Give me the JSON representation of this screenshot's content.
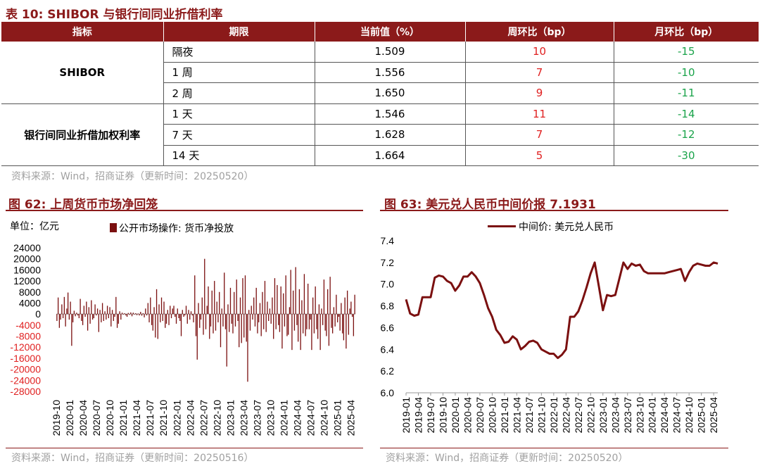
{
  "table": {
    "title": "表 10:  SHIBOR 与银行间同业折借利率",
    "headers": [
      "指标",
      "期限",
      "当前值（%）",
      "周环比（bp）",
      "月环比（bp）"
    ],
    "groups": [
      {
        "name": "SHIBOR",
        "rows": [
          {
            "period": "隔夜",
            "value": "1.509",
            "wow": "10",
            "mom": "-15"
          },
          {
            "period": "1 周",
            "value": "1.556",
            "wow": "7",
            "mom": "-10"
          },
          {
            "period": "2 周",
            "value": "1.650",
            "wow": "9",
            "mom": "-11"
          }
        ]
      },
      {
        "name": "银行间同业折借加权利率",
        "rows": [
          {
            "period": "1 天",
            "value": "1.546",
            "wow": "11",
            "mom": "-14"
          },
          {
            "period": "7 天",
            "value": "1.628",
            "wow": "7",
            "mom": "-12"
          },
          {
            "period": "14 天",
            "value": "1.664",
            "wow": "5",
            "mom": "-30"
          }
        ]
      }
    ],
    "source": "资料来源：Wind，招商证券（更新时间：20250520）"
  },
  "colors": {
    "accent": "#8B1A1A",
    "positive": "#e02020",
    "negative": "#1aa34a",
    "series": "#7B1010"
  },
  "chart_data": [
    {
      "type": "bar",
      "title": "图 62:  上周货币市场净回笼",
      "unit_label": "单位：亿元",
      "legend": "公开市场操作: 货币净投放",
      "legend_position": "top",
      "ylim": [
        -28000,
        24000
      ],
      "yticks": [
        24000,
        20000,
        16000,
        12000,
        8000,
        4000,
        0,
        -4000,
        -8000,
        -12000,
        -16000,
        -20000,
        -24000,
        -28000
      ],
      "ytick_labels": [
        "24000",
        "20000",
        "16000",
        "12000",
        "8000",
        "4000",
        "0",
        "-4000",
        "-8000",
        "-12000",
        "-16000",
        "-20000",
        "-24000",
        "-28000"
      ],
      "x_range": [
        "2019-10",
        "2025-05"
      ],
      "xticks": [
        "2019-10",
        "2020-01",
        "2020-04",
        "2020-07",
        "2020-10",
        "2021-01",
        "2021-04",
        "2021-07",
        "2021-10",
        "2022-01",
        "2022-04",
        "2022-07",
        "2022-10",
        "2023-01",
        "2023-04",
        "2023-07",
        "2023-10",
        "2024-01",
        "2024-04",
        "2024-07",
        "2024-10",
        "2025-01",
        "2025-04"
      ],
      "weekly_values": [
        -2500,
        6000,
        -5000,
        -2000,
        3500,
        -1500,
        6200,
        -4500,
        2000,
        7800,
        -2000,
        4500,
        -11500,
        -3000,
        1200,
        -800,
        500,
        -500,
        -1500,
        5500,
        -2500,
        -4000,
        3000,
        -1000,
        4500,
        -6000,
        2500,
        -3500,
        5000,
        -2000,
        -1500,
        3500,
        -500,
        2000,
        -6500,
        1500,
        -3000,
        4000,
        -2500,
        1000,
        -2000,
        3000,
        -1500,
        2500,
        -4500,
        1500,
        -2500,
        -1000,
        6200,
        -5000,
        -3500,
        1000,
        -2000,
        500,
        -200,
        300,
        -500,
        -1000,
        400,
        -300,
        600,
        -800,
        500,
        -200,
        300,
        -400,
        200,
        -500,
        800,
        -600,
        300,
        -1200,
        2000,
        -500,
        4000,
        -3000,
        6000,
        -4000,
        -6000,
        2500,
        -8500,
        9000,
        -9000,
        3500,
        -3000,
        6000,
        -2500,
        4500,
        -5000,
        -3500,
        1500,
        -4000,
        3000,
        -1500,
        2000,
        3000,
        -1000,
        -3500,
        2000,
        -1500,
        -2500,
        -8000,
        1500,
        -1000,
        -500,
        3000,
        -3500,
        1500,
        -2000,
        1000,
        -500,
        -3000,
        14000,
        -8000,
        -16500,
        4000,
        -5000,
        -2000,
        6000,
        -7500,
        20000,
        -5500,
        3000,
        10000,
        -9000,
        -4500,
        8500,
        -7000,
        12000,
        -6000,
        4500,
        -3000,
        8000,
        -12000,
        2000,
        -4500,
        15000,
        -5500,
        -19000,
        3500,
        -6500,
        9500,
        -3500,
        -7000,
        8000,
        -4500,
        12500,
        -2500,
        -12000,
        6000,
        -10500,
        13000,
        -8500,
        14000,
        -10000,
        -24500,
        1500,
        -6000,
        3000,
        -2000,
        6000,
        -4500,
        9500,
        -7000,
        -3000,
        4000,
        -8000,
        8000,
        -5500,
        12000,
        -6500,
        4500,
        -2500,
        2000,
        -3500,
        6000,
        -9000,
        13000,
        -5500,
        10500,
        -4000,
        -6500,
        10000,
        -12500,
        7500,
        -4500,
        14000,
        -8000,
        -7500,
        2500,
        16000,
        -13000,
        8500,
        -6000,
        17000,
        -4000,
        -10000,
        9000,
        -13000,
        5000,
        -7000,
        14500,
        -8000,
        -5500,
        11000,
        -5500,
        -2000,
        -13000,
        6000,
        -7000,
        10000,
        -5500,
        -9000,
        3500,
        -13000,
        2000,
        -4000,
        12500,
        -6000,
        -8000,
        9000,
        -11500,
        13500,
        -5000,
        -7000,
        2500,
        -4500,
        7000,
        -3000,
        -1000,
        -6000,
        4000,
        -7000,
        -9500,
        6000,
        -12500,
        8500,
        -7500,
        2000,
        4500,
        -1000,
        -8000,
        7000
      ]
    },
    {
      "type": "line",
      "title": "图 63:  美元兑人民币中间价报 7.1931",
      "legend": "中间价: 美元兑人民币",
      "legend_position": "top",
      "ylim": [
        6.0,
        7.4
      ],
      "yticks": [
        6.0,
        6.2,
        6.4,
        6.6,
        6.8,
        7.0,
        7.2,
        7.4
      ],
      "ytick_labels": [
        "6.0",
        "6.2",
        "6.4",
        "6.6",
        "6.8",
        "7.0",
        "7.2",
        "7.4"
      ],
      "x_range": [
        "2019-01",
        "2025-05"
      ],
      "xticks": [
        "2019-01",
        "2019-04",
        "2019-07",
        "2019-10",
        "2020-01",
        "2020-04",
        "2020-07",
        "2020-10",
        "2021-01",
        "2021-04",
        "2021-07",
        "2021-10",
        "2022-01",
        "2022-04",
        "2022-07",
        "2022-10",
        "2023-01",
        "2023-04",
        "2023-07",
        "2023-10",
        "2024-01",
        "2024-04",
        "2024-07",
        "2024-10",
        "2025-01",
        "2025-04"
      ],
      "series": [
        {
          "name": "中间价: 美元兑人民币",
          "points": [
            [
              "2019-01",
              6.86
            ],
            [
              "2019-02",
              6.73
            ],
            [
              "2019-03",
              6.71
            ],
            [
              "2019-04",
              6.72
            ],
            [
              "2019-05",
              6.88
            ],
            [
              "2019-06",
              6.88
            ],
            [
              "2019-07",
              6.88
            ],
            [
              "2019-08",
              7.06
            ],
            [
              "2019-09",
              7.08
            ],
            [
              "2019-10",
              7.07
            ],
            [
              "2019-11",
              7.03
            ],
            [
              "2019-12",
              7.01
            ],
            [
              "2020-01",
              6.94
            ],
            [
              "2020-02",
              6.99
            ],
            [
              "2020-03",
              7.07
            ],
            [
              "2020-04",
              7.07
            ],
            [
              "2020-05",
              7.11
            ],
            [
              "2020-06",
              7.07
            ],
            [
              "2020-07",
              7.01
            ],
            [
              "2020-08",
              6.9
            ],
            [
              "2020-09",
              6.78
            ],
            [
              "2020-10",
              6.7
            ],
            [
              "2020-11",
              6.58
            ],
            [
              "2020-12",
              6.53
            ],
            [
              "2021-01",
              6.46
            ],
            [
              "2021-02",
              6.47
            ],
            [
              "2021-03",
              6.52
            ],
            [
              "2021-04",
              6.49
            ],
            [
              "2021-05",
              6.4
            ],
            [
              "2021-06",
              6.43
            ],
            [
              "2021-07",
              6.47
            ],
            [
              "2021-08",
              6.48
            ],
            [
              "2021-09",
              6.46
            ],
            [
              "2021-10",
              6.4
            ],
            [
              "2021-11",
              6.38
            ],
            [
              "2021-12",
              6.36
            ],
            [
              "2022-01",
              6.36
            ],
            [
              "2022-02",
              6.32
            ],
            [
              "2022-03",
              6.35
            ],
            [
              "2022-04",
              6.4
            ],
            [
              "2022-05",
              6.7
            ],
            [
              "2022-06",
              6.7
            ],
            [
              "2022-07",
              6.75
            ],
            [
              "2022-08",
              6.85
            ],
            [
              "2022-09",
              6.97
            ],
            [
              "2022-10",
              7.1
            ],
            [
              "2022-11",
              7.2
            ],
            [
              "2022-12",
              6.98
            ],
            [
              "2023-01",
              6.76
            ],
            [
              "2023-02",
              6.9
            ],
            [
              "2023-03",
              6.89
            ],
            [
              "2023-04",
              6.9
            ],
            [
              "2023-05",
              7.05
            ],
            [
              "2023-06",
              7.2
            ],
            [
              "2023-07",
              7.14
            ],
            [
              "2023-08",
              7.19
            ],
            [
              "2023-09",
              7.17
            ],
            [
              "2023-10",
              7.18
            ],
            [
              "2023-11",
              7.12
            ],
            [
              "2023-12",
              7.1
            ],
            [
              "2024-01",
              7.1
            ],
            [
              "2024-02",
              7.1
            ],
            [
              "2024-03",
              7.1
            ],
            [
              "2024-04",
              7.1
            ],
            [
              "2024-05",
              7.11
            ],
            [
              "2024-06",
              7.12
            ],
            [
              "2024-07",
              7.13
            ],
            [
              "2024-08",
              7.14
            ],
            [
              "2024-09",
              7.03
            ],
            [
              "2024-10",
              7.11
            ],
            [
              "2024-11",
              7.17
            ],
            [
              "2024-12",
              7.19
            ],
            [
              "2025-01",
              7.18
            ],
            [
              "2025-02",
              7.17
            ],
            [
              "2025-03",
              7.17
            ],
            [
              "2025-04",
              7.2
            ],
            [
              "2025-05",
              7.19
            ]
          ]
        }
      ]
    }
  ],
  "figure_sources": [
    "资料来源：Wind，招商证券（更新时间：20250516）",
    "资料来源：Wind，招商证券（更新时间：20250520）"
  ]
}
